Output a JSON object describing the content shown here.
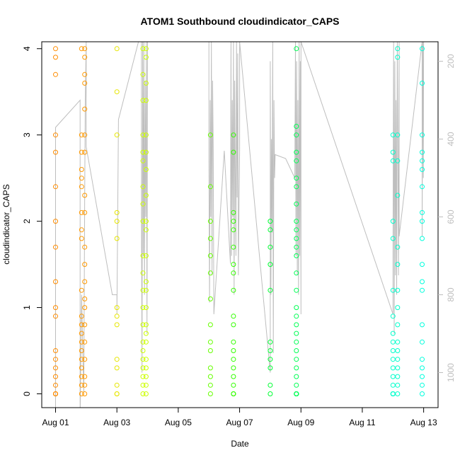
{
  "chart_data": {
    "type": "scatter",
    "title": "ATOM1 Southbound cloudindicator_CAPS",
    "xlabel": "Date",
    "ylabel": "cloudindicator_CAPS",
    "x_ticks": [
      "Aug 01",
      "Aug 03",
      "Aug 05",
      "Aug 07",
      "Aug 09",
      "Aug 11",
      "Aug 13"
    ],
    "x_tick_days": [
      1,
      3,
      5,
      7,
      9,
      11,
      13
    ],
    "xlim": [
      0.55,
      13.47
    ],
    "ylim": [
      -0.16,
      4.08
    ],
    "y_ticks": [
      0,
      1,
      2,
      3,
      4
    ],
    "right_axis": {
      "ticks": [
        200,
        400,
        600,
        800,
        1000
      ],
      "lim": [
        1090,
        150
      ],
      "color": "#bebebe"
    },
    "grid": false,
    "legend": "none",
    "colors": {
      "aug01": "#ff8c00",
      "aug02": "#ff9900",
      "aug03": "#e6e600",
      "aug04": "#ccff00",
      "aug06": "#66ff00",
      "aug07": "#33ff00",
      "aug08": "#00ff33",
      "aug09": "#00ff55",
      "aug12": "#00ffcc",
      "aug13": "#00ffdd",
      "line": "#bebebe"
    },
    "series": [
      {
        "x": [
          1.0,
          1.0,
          1.0,
          1.0,
          1.0,
          1.0,
          1.0,
          1.0,
          1.0,
          1.0,
          1.0,
          1.0,
          1.0,
          1.0,
          1.0,
          1.0,
          1.0,
          1.0,
          1.0,
          1.0
        ],
        "y": [
          4.0,
          3.9,
          3.7,
          3.0,
          2.8,
          2.4,
          2.0,
          1.7,
          1.3,
          1.0,
          0.9,
          0.5,
          0.4,
          0.3,
          0.2,
          0.1,
          0.0,
          0.0,
          0.0,
          0.0
        ],
        "color": "#ff8c00"
      },
      {
        "x": [
          1.85,
          1.85,
          1.85,
          1.85,
          1.85,
          1.85,
          1.85,
          1.85,
          1.85,
          1.85,
          1.85,
          1.85,
          1.85,
          1.85,
          1.85,
          1.85,
          1.85,
          1.85,
          1.85,
          1.85,
          1.95,
          1.95,
          1.95,
          1.95,
          1.95,
          1.95,
          1.95,
          1.95,
          1.95,
          1.95,
          1.95,
          1.95,
          1.95,
          1.95,
          1.95,
          1.95,
          1.95,
          1.95,
          1.95,
          1.95
        ],
        "y": [
          4.0,
          3.0,
          2.8,
          2.6,
          2.5,
          2.4,
          2.1,
          1.9,
          1.8,
          1.2,
          0.9,
          0.8,
          0.7,
          0.6,
          0.5,
          0.4,
          0.3,
          0.2,
          0.1,
          0.0,
          4.0,
          3.9,
          3.7,
          3.6,
          3.3,
          3.0,
          2.8,
          2.3,
          2.1,
          1.7,
          1.5,
          1.3,
          1.1,
          1.0,
          0.8,
          0.6,
          0.4,
          0.2,
          0.1,
          0.0
        ],
        "color": "#ff9900"
      },
      {
        "x": [
          3.0,
          3.0,
          3.0,
          3.0,
          3.0,
          3.0,
          3.0,
          3.0,
          3.0,
          3.0,
          3.0,
          3.0,
          3.0,
          3.0
        ],
        "y": [
          4.0,
          3.5,
          3.0,
          2.1,
          2.0,
          1.8,
          1.0,
          0.9,
          0.8,
          0.4,
          0.3,
          0.1,
          0.0,
          0.0
        ],
        "color": "#e6e600"
      },
      {
        "x": [
          3.85,
          3.85,
          3.85,
          3.85,
          3.85,
          3.85,
          3.85,
          3.85,
          3.85,
          3.85,
          3.85,
          3.85,
          3.85,
          3.85,
          3.85,
          3.85,
          3.85,
          3.85,
          3.85,
          3.85,
          3.85,
          3.95,
          3.95,
          3.95,
          3.95,
          3.95,
          3.95,
          3.95,
          3.95,
          3.95,
          3.95,
          3.95,
          3.95,
          3.95,
          3.95,
          3.95,
          3.95,
          3.95,
          3.95,
          3.95,
          3.95,
          3.95,
          3.95
        ],
        "y": [
          4.0,
          3.7,
          3.4,
          3.0,
          2.8,
          2.7,
          2.4,
          2.2,
          2.0,
          1.6,
          1.4,
          1.2,
          1.0,
          0.8,
          0.6,
          0.5,
          0.4,
          0.3,
          0.2,
          0.1,
          0.0,
          4.0,
          3.9,
          3.6,
          3.4,
          3.0,
          2.8,
          2.6,
          2.3,
          2.0,
          1.9,
          1.6,
          1.3,
          1.2,
          1.0,
          0.8,
          0.7,
          0.6,
          0.4,
          0.3,
          0.2,
          0.1,
          0.0
        ],
        "color": "#ccff00"
      },
      {
        "x": [
          6.05,
          6.05,
          6.05,
          6.05,
          6.05,
          6.05,
          6.05,
          6.05,
          6.05,
          6.05,
          6.05,
          6.05,
          6.05,
          6.05
        ],
        "y": [
          3.0,
          2.4,
          2.0,
          1.8,
          1.6,
          1.4,
          1.1,
          0.8,
          0.6,
          0.5,
          0.3,
          0.2,
          0.1,
          0.0
        ],
        "color": "#66ff00"
      },
      {
        "x": [
          6.8,
          6.8,
          6.8,
          6.8,
          6.8,
          6.8,
          6.8,
          6.8,
          6.8,
          6.8,
          6.8,
          6.8,
          6.8,
          6.8,
          6.8,
          6.8,
          6.8,
          6.8,
          6.8,
          6.8
        ],
        "y": [
          3.0,
          2.8,
          2.1,
          2.0,
          1.9,
          1.7,
          1.5,
          1.4,
          1.2,
          0.9,
          0.8,
          0.6,
          0.5,
          0.4,
          0.3,
          0.2,
          0.1,
          0.0,
          0.0,
          0.0
        ],
        "color": "#33ff00"
      },
      {
        "x": [
          8.0,
          8.0,
          8.0,
          8.0,
          8.0,
          8.0,
          8.0,
          8.0,
          8.0,
          8.0,
          8.0
        ],
        "y": [
          2.0,
          1.9,
          1.7,
          1.5,
          1.2,
          0.6,
          0.5,
          0.4,
          0.3,
          0.1,
          0.0
        ],
        "color": "#00ff33"
      },
      {
        "x": [
          8.85,
          8.85,
          8.85,
          8.85,
          8.85,
          8.85,
          8.85,
          8.85,
          8.85,
          8.85,
          8.85,
          8.85,
          8.85,
          8.85,
          8.85,
          8.85,
          8.85,
          8.85,
          8.85,
          8.85,
          8.85,
          8.85,
          8.85,
          8.85,
          8.85,
          8.85,
          8.85,
          8.85,
          8.85,
          8.85,
          8.85,
          8.85,
          8.85,
          8.85,
          8.85,
          8.85
        ],
        "y": [
          4.0,
          3.1,
          3.0,
          2.8,
          2.7,
          2.5,
          2.4,
          2.2,
          2.0,
          1.9,
          1.8,
          1.7,
          1.6,
          1.4,
          1.2,
          1.0,
          0.9,
          0.8,
          0.7,
          0.6,
          0.5,
          0.4,
          0.3,
          0.2,
          0.1,
          0.0,
          0.0,
          0.0,
          0.0,
          0.0,
          0.0,
          0.0,
          0.0,
          0.0,
          0.0,
          0.0
        ],
        "color": "#00ff55"
      },
      {
        "x": [
          12.0,
          12.0,
          12.0,
          12.0,
          12.0,
          12.0,
          12.0,
          12.0,
          12.0,
          12.0,
          12.0,
          12.0,
          12.0,
          12.0,
          12.0,
          12.0,
          12.0,
          12.0,
          12.0,
          12.0,
          12.15,
          12.15,
          12.15,
          12.15,
          12.15,
          12.15,
          12.15,
          12.15,
          12.15,
          12.15,
          12.15,
          12.15,
          12.15,
          12.15,
          12.15,
          12.15,
          12.15
        ],
        "y": [
          3.0,
          2.8,
          2.7,
          2.0,
          1.8,
          1.2,
          0.9,
          0.7,
          0.6,
          0.5,
          0.4,
          0.3,
          0.2,
          0.1,
          0.0,
          0.0,
          0.0,
          0.0,
          0.0,
          0.0,
          4.0,
          3.9,
          3.0,
          2.7,
          2.3,
          1.7,
          1.5,
          1.2,
          1.0,
          0.8,
          0.6,
          0.5,
          0.4,
          0.3,
          0.2,
          0.1,
          0.0
        ],
        "color": "#00ffcc"
      },
      {
        "x": [
          12.95,
          12.95,
          12.95,
          12.95,
          12.95,
          12.95,
          12.95,
          12.95,
          12.95,
          12.95,
          12.95,
          12.95,
          12.95,
          12.95,
          12.95,
          12.95,
          12.95,
          12.95,
          12.95,
          12.95
        ],
        "y": [
          4.0,
          3.6,
          3.0,
          2.8,
          2.7,
          2.6,
          2.4,
          2.1,
          2.0,
          1.8,
          1.5,
          1.3,
          1.2,
          0.8,
          0.6,
          0.4,
          0.3,
          0.2,
          0.1,
          0.0
        ],
        "color": "#00ffdd"
      }
    ],
    "line_series": {
      "color": "#bebebe",
      "x": [
        1.0,
        1.0,
        1.8,
        1.8,
        1.85,
        1.9,
        1.92,
        1.95,
        1.97,
        2.0,
        2.0,
        2.0,
        2.85,
        3.0,
        3.0,
        3.05,
        3.05,
        3.8,
        3.8,
        3.82,
        3.84,
        3.86,
        3.88,
        3.9,
        3.92,
        3.94,
        3.96,
        3.98,
        4.0,
        4.0,
        4.0,
        6.0,
        6.0,
        6.02,
        6.04,
        6.06,
        6.08,
        6.1,
        6.12,
        6.14,
        6.16,
        6.5,
        6.7,
        6.72,
        6.74,
        6.76,
        6.78,
        6.8,
        6.82,
        6.84,
        6.86,
        6.88,
        6.9,
        6.92,
        6.94,
        6.96,
        7.0,
        7.0,
        8.0,
        8.0,
        8.02,
        8.04,
        8.06,
        8.08,
        8.1,
        8.12,
        8.14,
        8.16,
        8.5,
        8.8,
        8.82,
        8.84,
        8.86,
        8.88,
        8.9,
        8.92,
        8.94,
        8.96,
        8.98,
        9.0,
        9.0,
        9.0,
        12.0,
        12.0,
        12.02,
        12.04,
        12.06,
        12.08,
        12.1,
        12.12,
        12.14,
        12.16,
        12.18,
        12.2,
        12.2,
        12.95,
        12.95,
        12.97,
        12.99,
        13.0
      ],
      "y": [
        1150,
        370,
        300,
        1120,
        800,
        990,
        1050,
        540,
        300,
        150,
        150,
        420,
        800,
        800,
        850,
        350,
        350,
        120,
        620,
        1000,
        150,
        700,
        150,
        800,
        250,
        600,
        150,
        900,
        150,
        150,
        150,
        150,
        450,
        820,
        300,
        600,
        150,
        750,
        250,
        430,
        850,
        430,
        720,
        150,
        700,
        300,
        600,
        150,
        800,
        250,
        500,
        700,
        150,
        550,
        180,
        750,
        430,
        150,
        1000,
        200,
        800,
        400,
        640,
        150,
        950,
        300,
        500,
        440,
        450,
        500,
        150,
        700,
        200,
        750,
        300,
        800,
        150,
        700,
        200,
        850,
        150,
        150,
        850,
        700,
        150,
        900,
        200,
        750,
        300,
        800,
        150,
        400,
        750,
        150,
        650,
        150,
        650,
        150,
        500,
        150
      ]
    }
  }
}
